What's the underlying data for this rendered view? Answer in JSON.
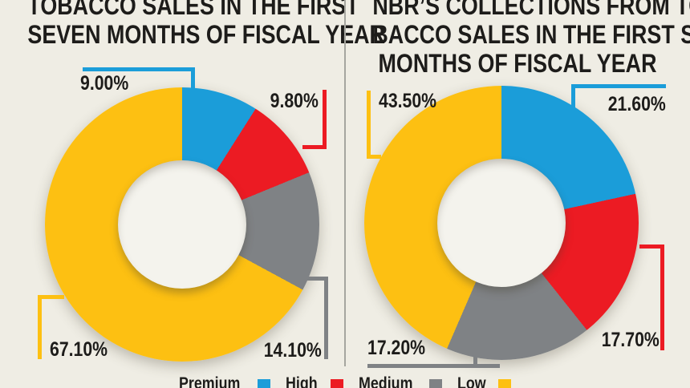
{
  "page": {
    "background_color": "#EFEDE4",
    "divider_color": "#A6A69F",
    "text_color": "#1D1C1A",
    "hole_color": "#F4F3ED"
  },
  "legend": {
    "items": [
      {
        "label": "Premium",
        "color": "#1B9DD9"
      },
      {
        "label": "High",
        "color": "#EC1B23"
      },
      {
        "label": "Medium",
        "color": "#7F8285"
      },
      {
        "label": "Low",
        "color": "#FDC012"
      }
    ]
  },
  "chart_data": [
    {
      "type": "pie",
      "donut": true,
      "title": "TOBACCO SALES IN THE FIRST SEVEN MONTHS OF FISCAL YEAR",
      "title_lines": [
        "TOBACCO SALES IN THE FIRST",
        "SEVEN MONTHS OF FISCAL YEAR"
      ],
      "categories": [
        "Premium",
        "High",
        "Medium",
        "Low"
      ],
      "values": [
        9.0,
        9.8,
        14.1,
        67.1
      ],
      "labels": [
        "9.00%",
        "9.80%",
        "14.10%",
        "67.10%"
      ],
      "colors": [
        "#1B9DD9",
        "#EC1B23",
        "#7F8285",
        "#FDC012"
      ],
      "start_angle_deg": 0,
      "direction": "clockwise",
      "legend_position": "bottom"
    },
    {
      "type": "pie",
      "donut": true,
      "title": "NBR’S COLLECTIONS FROM TOBACCO SALES IN THE FIRST SEVEN MONTHS OF FISCAL YEAR",
      "title_lines": [
        "NBR’S COLLECTIONS FROM TO-",
        "BACCO SALES IN THE FIRST SEVEN",
        "MONTHS OF FISCAL YEAR"
      ],
      "categories": [
        "Premium",
        "High",
        "Medium",
        "Low"
      ],
      "values": [
        21.6,
        17.7,
        17.2,
        43.5
      ],
      "labels": [
        "21.60%",
        "17.70%",
        "17.20%",
        "43.50%"
      ],
      "colors": [
        "#1B9DD9",
        "#EC1B23",
        "#7F8285",
        "#FDC012"
      ],
      "start_angle_deg": 0,
      "direction": "clockwise",
      "legend_position": "bottom"
    }
  ]
}
